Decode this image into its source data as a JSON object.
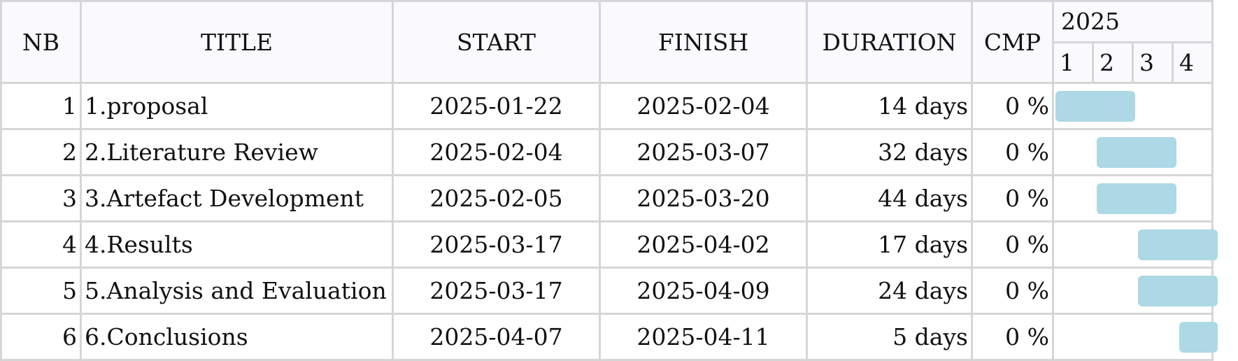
{
  "headers": {
    "nb": "NB",
    "title": "TITLE",
    "start": "START",
    "finish": "FINISH",
    "duration": "DURATION",
    "cmp": "CMP",
    "year": "2025",
    "quarters": [
      "1",
      "2",
      "3",
      "4"
    ]
  },
  "rows": [
    {
      "nb": "1",
      "title": "1.proposal",
      "start": "2025-01-22",
      "finish": "2025-02-04",
      "duration": "14 days",
      "cmp": "0 %",
      "bar_start_q": 0,
      "bar_end_q": 2
    },
    {
      "nb": "2",
      "title": "2.Literature Review",
      "start": "2025-02-04",
      "finish": "2025-03-07",
      "duration": "32 days",
      "cmp": "0 %",
      "bar_start_q": 1,
      "bar_end_q": 3
    },
    {
      "nb": "3",
      "title": "3.Artefact Development",
      "start": "2025-02-05",
      "finish": "2025-03-20",
      "duration": "44 days",
      "cmp": "0 %",
      "bar_start_q": 1,
      "bar_end_q": 3
    },
    {
      "nb": "4",
      "title": "4.Results",
      "start": "2025-03-17",
      "finish": "2025-04-02",
      "duration": "17 days",
      "cmp": "0 %",
      "bar_start_q": 2,
      "bar_end_q": 4
    },
    {
      "nb": "5",
      "title": "5.Analysis and Evaluation",
      "start": "2025-03-17",
      "finish": "2025-04-09",
      "duration": "24 days",
      "cmp": "0 %",
      "bar_start_q": 2,
      "bar_end_q": 4
    },
    {
      "nb": "6",
      "title": "6.Conclusions",
      "start": "2025-04-07",
      "finish": "2025-04-11",
      "duration": "5 days",
      "cmp": "0 %",
      "bar_start_q": 3,
      "bar_end_q": 4
    }
  ],
  "colors": {
    "bar": "#add8e6",
    "header_bg": "#f9f9fe",
    "grid": "#d6d6d6"
  }
}
